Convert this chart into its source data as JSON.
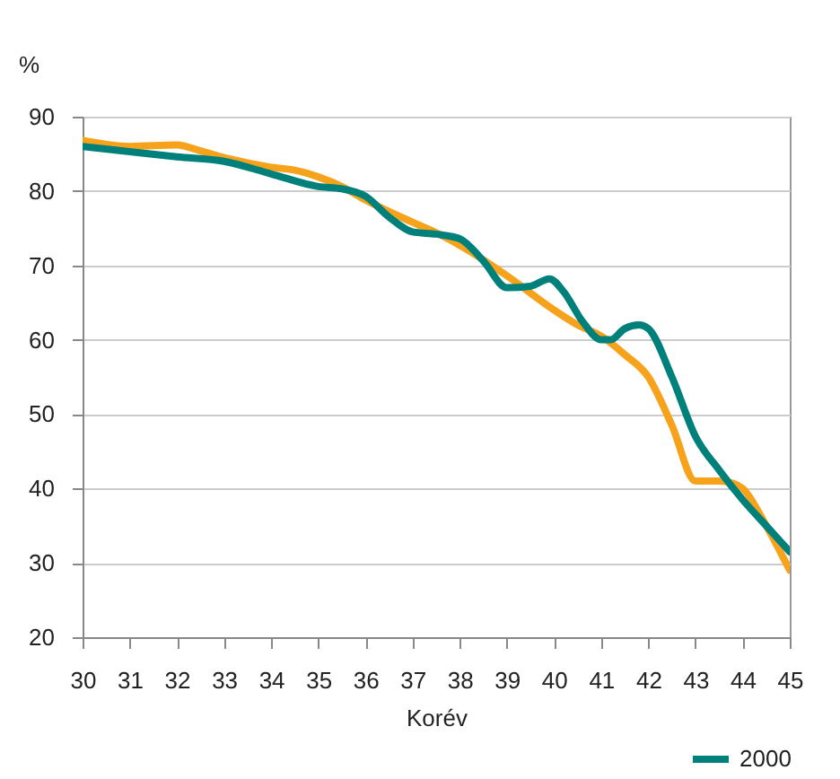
{
  "chart_data": {
    "type": "line",
    "xlabel": "Korév",
    "ylabel": "%",
    "xlim": [
      30,
      45
    ],
    "xticks": [
      30,
      31,
      32,
      33,
      34,
      35,
      36,
      37,
      38,
      39,
      40,
      41,
      42,
      43,
      44,
      45
    ],
    "ylim": [
      20,
      90
    ],
    "yticks": [
      20,
      30,
      40,
      50,
      60,
      70,
      80,
      90
    ],
    "grid": "y",
    "legend": "bottom right",
    "series": [
      {
        "color": "#f7a21b",
        "x": [
          30,
          31,
          32,
          32.5,
          33,
          34,
          34.5,
          35,
          35.5,
          36,
          37,
          37.5,
          38,
          39,
          40,
          40.5,
          41,
          41.5,
          42,
          42.5,
          43,
          43.5,
          43.8,
          44,
          44.5,
          45
        ],
        "values": [
          86.8,
          86,
          86.2,
          85.4,
          84.5,
          83.2,
          82.8,
          81.9,
          80.6,
          78.8,
          75.8,
          74.4,
          72.7,
          68.6,
          64,
          62,
          60.5,
          58,
          55,
          48.5,
          41,
          41,
          40.7,
          40,
          35,
          29
        ]
      },
      {
        "name": "2000",
        "color": "#00807a",
        "x": [
          30,
          31,
          32,
          33,
          34,
          35,
          35.5,
          36,
          36.5,
          37,
          37.5,
          38,
          38.5,
          39,
          39.5,
          39.9,
          40.2,
          40.6,
          41,
          41.2,
          41.5,
          41.8,
          42,
          42.5,
          43,
          43.5,
          44,
          44.5,
          45
        ],
        "values": [
          86,
          85.3,
          84.6,
          84,
          82.3,
          80.6,
          80.3,
          79.3,
          76.5,
          74.5,
          74.2,
          73.6,
          70.6,
          67,
          67.2,
          68.2,
          66.5,
          62.5,
          60,
          60,
          61.5,
          62,
          61.5,
          55,
          47,
          42.5,
          38.5,
          35,
          31.5
        ]
      }
    ]
  }
}
